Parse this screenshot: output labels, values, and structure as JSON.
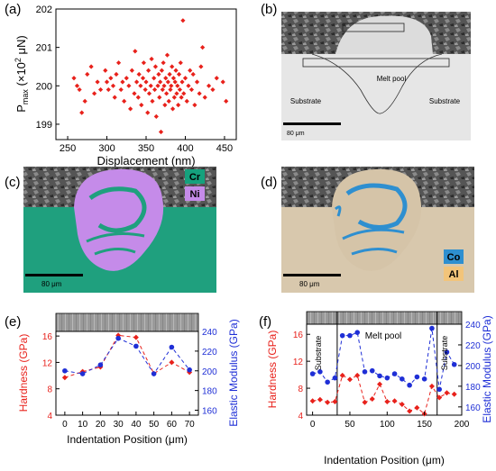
{
  "panels": {
    "a": {
      "label": "(a)"
    },
    "b": {
      "label": "(b)",
      "annotations": [
        "Melt pool",
        "Substrate",
        "Substrate"
      ],
      "scalebar": "80 μm"
    },
    "c": {
      "label": "(c)",
      "legend": [
        {
          "text": "Cr",
          "color": "#15a17d"
        },
        {
          "text": "Ni",
          "color": "#c58be9"
        }
      ],
      "scalebar": "80 μm"
    },
    "d": {
      "label": "(d)",
      "legend": [
        {
          "text": "Co",
          "color": "#2e8fd0"
        },
        {
          "text": "Al",
          "color": "#f2c47a"
        }
      ],
      "scalebar": "80 μm"
    },
    "e": {
      "label": "(e)"
    },
    "f": {
      "label": "(f)",
      "annotations": [
        "Substrate",
        "Melt pool",
        "Substrate"
      ]
    }
  },
  "colors": {
    "hardness": "#e8211b",
    "modulus": "#1f2fd6",
    "scatter": "#e8211b"
  },
  "chart_data": [
    {
      "id": "a",
      "type": "scatter",
      "xlabel": "Displacement (nm)",
      "ylabel": "P",
      "ylabel_sub": "max",
      "ylabel_unit": " (×10",
      "ylabel_sup": "2",
      "ylabel_tail": " μN)",
      "xlim": [
        235,
        465
      ],
      "ylim": [
        198.6,
        202.0
      ],
      "xticks": [
        "250",
        "300",
        "350",
        "400",
        "450"
      ],
      "yticks": [
        "199",
        "200",
        "201",
        "202"
      ],
      "points": [
        [
          258,
          200.2
        ],
        [
          262,
          200.0
        ],
        [
          265,
          199.9
        ],
        [
          268,
          199.3
        ],
        [
          272,
          199.6
        ],
        [
          275,
          200.3
        ],
        [
          280,
          200.5
        ],
        [
          284,
          199.8
        ],
        [
          288,
          200.1
        ],
        [
          292,
          199.9
        ],
        [
          298,
          200.4
        ],
        [
          300,
          200.1
        ],
        [
          302,
          199.9
        ],
        [
          305,
          200.2
        ],
        [
          308,
          200.0
        ],
        [
          310,
          199.7
        ],
        [
          312,
          200.3
        ],
        [
          315,
          200.6
        ],
        [
          318,
          199.9
        ],
        [
          320,
          200.1
        ],
        [
          322,
          199.6
        ],
        [
          325,
          200.2
        ],
        [
          328,
          200.0
        ],
        [
          330,
          199.4
        ],
        [
          332,
          200.4
        ],
        [
          335,
          199.8
        ],
        [
          336,
          200.9
        ],
        [
          338,
          200.1
        ],
        [
          340,
          199.7
        ],
        [
          341,
          200.3
        ],
        [
          343,
          200.0
        ],
        [
          344,
          199.5
        ],
        [
          346,
          200.2
        ],
        [
          347,
          200.6
        ],
        [
          349,
          199.9
        ],
        [
          350,
          200.1
        ],
        [
          352,
          199.3
        ],
        [
          353,
          200.4
        ],
        [
          354,
          199.8
        ],
        [
          356,
          200.0
        ],
        [
          357,
          200.7
        ],
        [
          358,
          199.6
        ],
        [
          360,
          200.2
        ],
        [
          361,
          199.9
        ],
        [
          362,
          200.5
        ],
        [
          363,
          199.2
        ],
        [
          365,
          200.0
        ],
        [
          366,
          200.3
        ],
        [
          367,
          199.7
        ],
        [
          368,
          200.1
        ],
        [
          369,
          198.8
        ],
        [
          370,
          200.4
        ],
        [
          371,
          199.9
        ],
        [
          372,
          200.6
        ],
        [
          373,
          200.0
        ],
        [
          374,
          199.5
        ],
        [
          375,
          200.2
        ],
        [
          376,
          199.8
        ],
        [
          377,
          200.8
        ],
        [
          378,
          200.1
        ],
        [
          379,
          199.6
        ],
        [
          380,
          200.3
        ],
        [
          381,
          199.9
        ],
        [
          382,
          200.0
        ],
        [
          383,
          200.5
        ],
        [
          384,
          199.4
        ],
        [
          385,
          200.2
        ],
        [
          386,
          199.7
        ],
        [
          387,
          200.1
        ],
        [
          388,
          200.4
        ],
        [
          389,
          199.8
        ],
        [
          390,
          200.0
        ],
        [
          391,
          199.5
        ],
        [
          392,
          200.3
        ],
        [
          393,
          199.9
        ],
        [
          394,
          200.6
        ],
        [
          395,
          199.7
        ],
        [
          396,
          200.1
        ],
        [
          397,
          201.7
        ],
        [
          398,
          199.8
        ],
        [
          400,
          200.2
        ],
        [
          402,
          199.6
        ],
        [
          404,
          200.0
        ],
        [
          406,
          200.4
        ],
        [
          408,
          199.9
        ],
        [
          410,
          200.3
        ],
        [
          412,
          199.5
        ],
        [
          415,
          200.1
        ],
        [
          418,
          199.8
        ],
        [
          420,
          200.5
        ],
        [
          422,
          201.0
        ],
        [
          425,
          199.7
        ],
        [
          430,
          200.0
        ],
        [
          435,
          199.9
        ],
        [
          440,
          200.2
        ],
        [
          448,
          200.1
        ],
        [
          452,
          199.6
        ]
      ]
    },
    {
      "id": "e",
      "type": "line",
      "xlabel": "Indentation Position (μm)",
      "ylabel": "Hardness (GPa)",
      "y2label": "Elastic Modulus (GPa)",
      "xlim": [
        -5,
        75
      ],
      "ylim": [
        4,
        16.7
      ],
      "y2lim": [
        155,
        240
      ],
      "xticks": [
        0,
        10,
        20,
        30,
        40,
        50,
        60,
        70
      ],
      "yticks": [
        4,
        8,
        12,
        16
      ],
      "y2ticks": [
        160,
        180,
        200,
        220,
        240
      ],
      "x": [
        0,
        10,
        20,
        30,
        40,
        50,
        60,
        70
      ],
      "series": [
        {
          "axis": "left",
          "values": [
            9.7,
            10.6,
            11.3,
            16.1,
            15.8,
            10.3,
            12.0,
            10.5
          ],
          "marker": "diamond"
        },
        {
          "axis": "right",
          "values": [
            200,
            197,
            206,
            233,
            225,
            197,
            224,
            201
          ],
          "marker": "circle"
        }
      ]
    },
    {
      "id": "f",
      "type": "line",
      "xlabel": "Indentation Position (μm)",
      "ylabel": "Hardness (GPa)",
      "y2label": "Elastic Modulus (GPa)",
      "xlim": [
        -8,
        200
      ],
      "ylim": [
        4,
        17.5
      ],
      "y2lim": [
        152,
        240
      ],
      "xticks": [
        0,
        50,
        100,
        150,
        200
      ],
      "yticks": [
        4,
        8,
        12,
        16
      ],
      "y2ticks": [
        160,
        180,
        200,
        220,
        240
      ],
      "vlines": [
        33,
        167
      ],
      "x": [
        0,
        10,
        20,
        30,
        40,
        50,
        60,
        70,
        80,
        90,
        100,
        110,
        120,
        130,
        140,
        150,
        160,
        170,
        180,
        190
      ],
      "series": [
        {
          "axis": "left",
          "values": [
            6.1,
            6.3,
            5.9,
            6.0,
            9.9,
            9.3,
            9.9,
            5.9,
            6.4,
            8.6,
            6.0,
            6.1,
            5.6,
            4.6,
            5.1,
            4.2,
            8.3,
            6.6,
            7.3,
            7.1
          ],
          "marker": "diamond"
        },
        {
          "axis": "right",
          "values": [
            192,
            194,
            184,
            188,
            229,
            229,
            232,
            194,
            195,
            190,
            188,
            192,
            187,
            181,
            189,
            187,
            236,
            177,
            213,
            201
          ],
          "marker": "circle"
        }
      ]
    }
  ]
}
